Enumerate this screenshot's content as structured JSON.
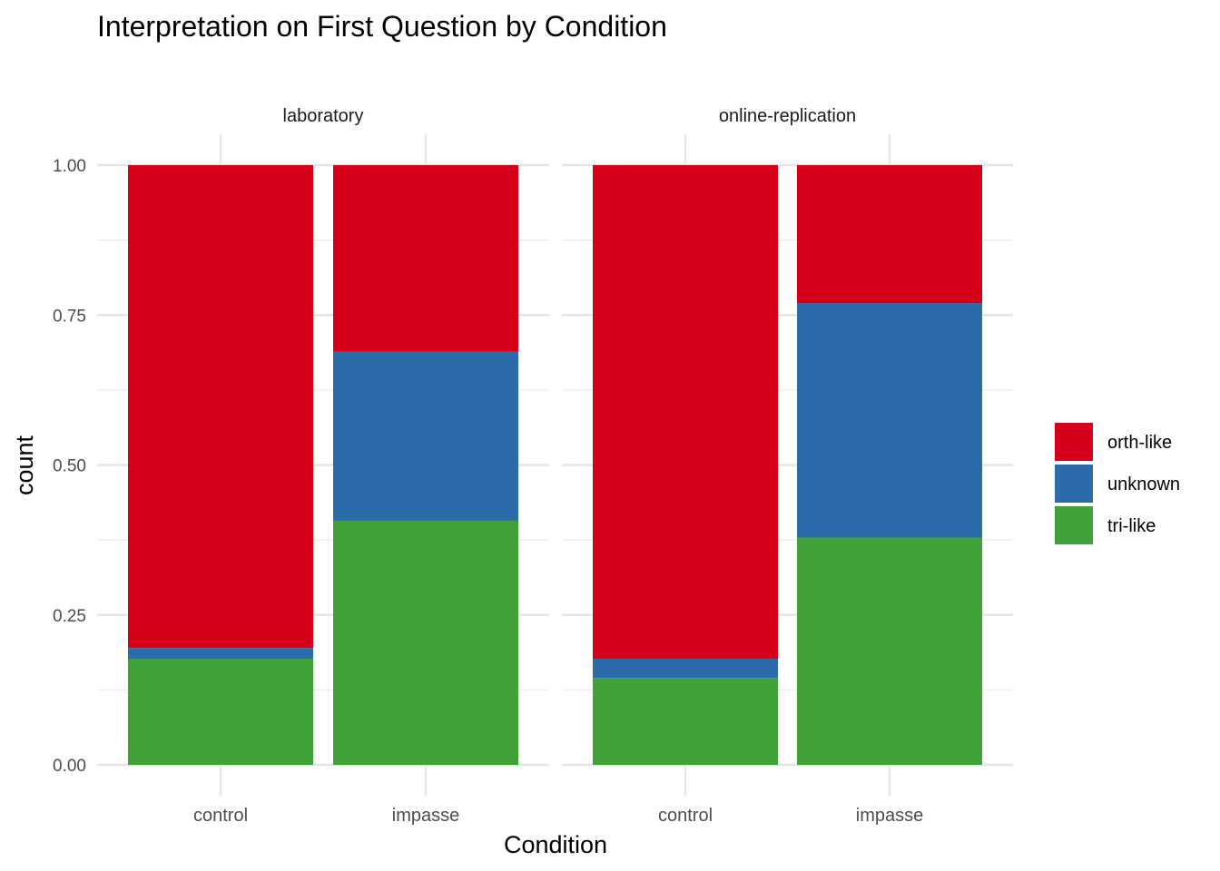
{
  "chart_data": {
    "type": "bar",
    "stacked": true,
    "title": "Interpretation on First Question by Condition",
    "xlabel": "Condition",
    "ylabel": "count",
    "ylim": [
      0,
      1
    ],
    "yticks": [
      "0.00",
      "0.25",
      "0.50",
      "0.75",
      "1.00"
    ],
    "ytick_values": [
      0,
      0.25,
      0.5,
      0.75,
      1.0
    ],
    "y_minor_ticks": [
      0.125,
      0.375,
      0.625,
      0.875
    ],
    "grid": true,
    "legend_position": "right",
    "categories": [
      "control",
      "impasse"
    ],
    "series_order_bottom_to_top": [
      "tri-like",
      "unknown",
      "orth-like"
    ],
    "legend_order": [
      "orth-like",
      "unknown",
      "tri-like"
    ],
    "colors": {
      "orth-like": "#D7001B",
      "unknown": "#2C6BA9",
      "tri-like": "#40A33A"
    },
    "panels": [
      {
        "facet": "laboratory",
        "series": [
          {
            "name": "tri-like",
            "values": [
              0.177,
              0.407
            ]
          },
          {
            "name": "unknown",
            "values": [
              0.018,
              0.282
            ]
          },
          {
            "name": "orth-like",
            "values": [
              0.805,
              0.311
            ]
          }
        ]
      },
      {
        "facet": "online-replication",
        "series": [
          {
            "name": "tri-like",
            "values": [
              0.145,
              0.379
            ]
          },
          {
            "name": "unknown",
            "values": [
              0.032,
              0.391
            ]
          },
          {
            "name": "orth-like",
            "values": [
              0.823,
              0.23
            ]
          }
        ]
      }
    ]
  }
}
